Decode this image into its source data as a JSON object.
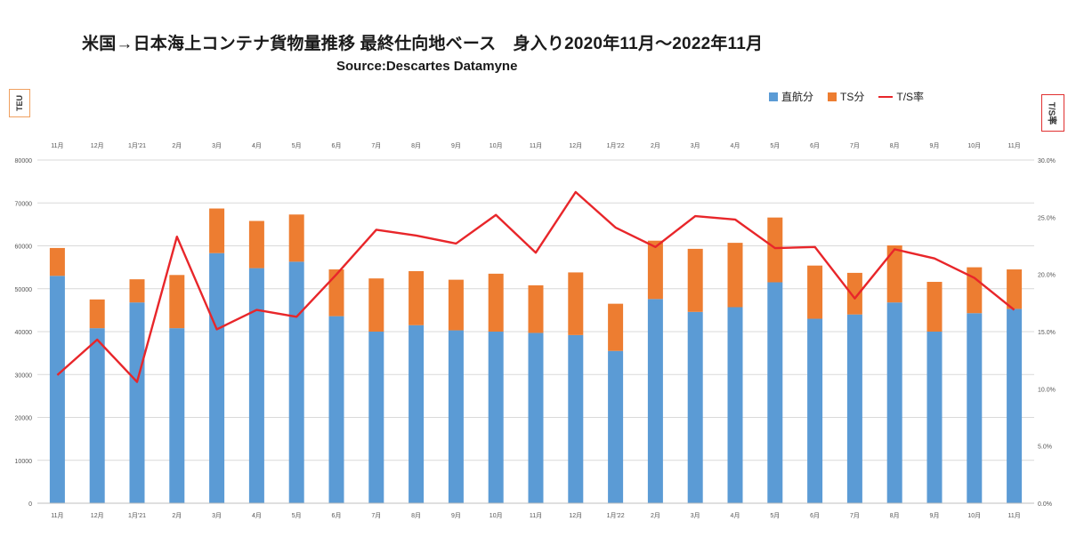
{
  "header": {
    "title": "米国→日本海上コンテナ貨物量推移  最終仕向地ベース　身入り2020年11月～2022年11月",
    "source": "Source:Descartes Datamyne"
  },
  "axes": {
    "left_unit": "TEU",
    "right_unit": "T/S率"
  },
  "legend": [
    {
      "label": "直航分",
      "color": "#5b9bd5",
      "kind": "bar"
    },
    {
      "label": "TS分",
      "color": "#ed7d31",
      "kind": "bar"
    },
    {
      "label": "T/S率",
      "color": "#e8262a",
      "kind": "line"
    }
  ],
  "chart_data": {
    "type": "bar",
    "stacked": true,
    "categories": [
      "11月",
      "12月",
      "1月'21",
      "2月",
      "3月",
      "4月",
      "5月",
      "6月",
      "7月",
      "8月",
      "9月",
      "10月",
      "11月",
      "12月",
      "1月'22",
      "2月",
      "3月",
      "4月",
      "5月",
      "6月",
      "7月",
      "8月",
      "9月",
      "10月",
      "11月"
    ],
    "series": [
      {
        "name": "直航分",
        "color": "#5b9bd5",
        "axis": "left",
        "values": [
          53000,
          40800,
          46800,
          40800,
          58300,
          54800,
          56300,
          43600,
          40000,
          41500,
          40300,
          40000,
          39700,
          39200,
          35500,
          47600,
          44600,
          45700,
          51500,
          43000,
          44000,
          46800,
          40000,
          44300,
          45300
        ]
      },
      {
        "name": "TS分",
        "color": "#ed7d31",
        "axis": "left",
        "values": [
          6500,
          6700,
          5400,
          12400,
          10400,
          11000,
          11000,
          10900,
          12400,
          12600,
          11800,
          13500,
          11100,
          14600,
          11000,
          13600,
          14700,
          15000,
          15100,
          12400,
          9700,
          13300,
          11600,
          10700,
          9200
        ]
      },
      {
        "name": "T/S率",
        "color": "#e8262a",
        "type": "line",
        "axis": "right",
        "values": [
          11.2,
          14.3,
          10.6,
          23.3,
          15.2,
          16.9,
          16.3,
          20.0,
          23.9,
          23.4,
          22.7,
          25.2,
          21.9,
          27.2,
          24.1,
          22.4,
          25.1,
          24.8,
          22.3,
          22.4,
          17.9,
          22.2,
          21.4,
          19.7,
          16.9
        ]
      }
    ],
    "ylim_left": [
      0,
      80000
    ],
    "yticks_left": [
      "0",
      "10000",
      "20000",
      "30000",
      "40000",
      "50000",
      "60000",
      "70000",
      "80000"
    ],
    "ylim_right": [
      0,
      30
    ],
    "yticks_right": [
      "0.0%",
      "5.0%",
      "10.0%",
      "15.0%",
      "20.0%",
      "25.0%",
      "30.0%"
    ],
    "grid": true,
    "legend_position": "top-right"
  }
}
